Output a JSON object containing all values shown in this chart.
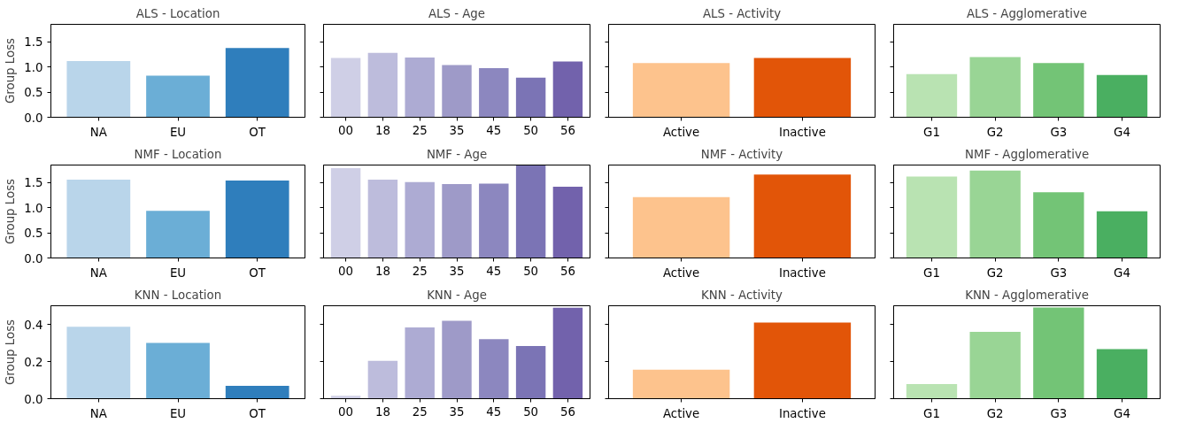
{
  "chart_data": [
    {
      "type": "bar",
      "title": "ALS - Location",
      "ylabel": "Group Loss",
      "categories": [
        "NA",
        "EU",
        "OT"
      ],
      "values": [
        1.12,
        0.83,
        1.38
      ],
      "colors": [
        "#b9d5ea",
        "#6baed6",
        "#2f7ebc"
      ],
      "ylim": [
        0,
        1.85
      ],
      "yticks": [
        {
          "value": 0,
          "label": "0.0"
        },
        0.5,
        {
          "value": 1,
          "label": "1.0"
        },
        1.5
      ]
    },
    {
      "type": "bar",
      "title": "ALS - Age",
      "categories": [
        "00",
        "18",
        "25",
        "35",
        "45",
        "50",
        "56"
      ],
      "values": [
        1.18,
        1.28,
        1.19,
        1.04,
        0.98,
        0.79,
        1.11
      ],
      "colors": [
        "#cfcfe6",
        "#bdbcdc",
        "#adabd3",
        "#9e9ac8",
        "#8c87bf",
        "#7b74b5",
        "#7262ac"
      ],
      "ylim": [
        0,
        1.85
      ],
      "yticks": [
        {
          "value": 0,
          "label": null
        },
        {
          "value": 0.5,
          "label": null
        },
        {
          "value": 1,
          "label": null
        },
        {
          "value": 1.5,
          "label": null
        }
      ],
      "tick_labels": "x"
    },
    {
      "type": "bar",
      "title": "ALS - Activity",
      "categories": [
        "Active",
        "Inactive"
      ],
      "values": [
        1.08,
        1.18
      ],
      "colors": [
        "#fdc38d",
        "#e25508"
      ],
      "ylim": [
        0,
        1.85
      ],
      "yticks": [
        {
          "value": 0,
          "label": null
        },
        {
          "value": 0.5,
          "label": null
        },
        {
          "value": 1,
          "label": null
        },
        {
          "value": 1.5,
          "label": null
        }
      ],
      "tick_labels": "x"
    },
    {
      "type": "bar",
      "title": "ALS - Agglomerative",
      "categories": [
        "G1",
        "G2",
        "G3",
        "G4"
      ],
      "values": [
        0.86,
        1.2,
        1.08,
        0.84
      ],
      "colors": [
        "#b9e3b2",
        "#99d595",
        "#73c476",
        "#4aaf61"
      ],
      "ylim": [
        0,
        1.85
      ],
      "yticks": [
        {
          "value": 0,
          "label": null
        },
        {
          "value": 0.5,
          "label": null
        },
        {
          "value": 1,
          "label": null
        },
        {
          "value": 1.5,
          "label": null
        }
      ],
      "tick_labels": "x"
    },
    {
      "type": "bar",
      "title": "NMF - Location",
      "ylabel": "Group Loss",
      "categories": [
        "NA",
        "EU",
        "OT"
      ],
      "values": [
        1.56,
        0.94,
        1.54
      ],
      "colors": [
        "#b9d5ea",
        "#6baed6",
        "#2f7ebc"
      ],
      "ylim": [
        0,
        1.85
      ],
      "yticks": [
        {
          "value": 0,
          "label": "0.0"
        },
        0.5,
        {
          "value": 1,
          "label": "1.0"
        },
        1.5
      ]
    },
    {
      "type": "bar",
      "title": "NMF - Age",
      "categories": [
        "00",
        "18",
        "25",
        "35",
        "45",
        "50",
        "56"
      ],
      "values": [
        1.79,
        1.56,
        1.51,
        1.47,
        1.48,
        1.84,
        1.42
      ],
      "colors": [
        "#cfcfe6",
        "#bdbcdc",
        "#adabd3",
        "#9e9ac8",
        "#8c87bf",
        "#7b74b5",
        "#7262ac"
      ],
      "ylim": [
        0,
        1.85
      ],
      "yticks": [
        {
          "value": 0,
          "label": null
        },
        {
          "value": 0.5,
          "label": null
        },
        {
          "value": 1,
          "label": null
        },
        {
          "value": 1.5,
          "label": null
        }
      ],
      "tick_labels": "x"
    },
    {
      "type": "bar",
      "title": "NMF - Activity",
      "categories": [
        "Active",
        "Inactive"
      ],
      "values": [
        1.21,
        1.66
      ],
      "colors": [
        "#fdc38d",
        "#e25508"
      ],
      "ylim": [
        0,
        1.85
      ],
      "yticks": [
        {
          "value": 0,
          "label": null
        },
        {
          "value": 0.5,
          "label": null
        },
        {
          "value": 1,
          "label": null
        },
        {
          "value": 1.5,
          "label": null
        }
      ],
      "tick_labels": "x"
    },
    {
      "type": "bar",
      "title": "NMF - Agglomerative",
      "categories": [
        "G1",
        "G2",
        "G3",
        "G4"
      ],
      "values": [
        1.62,
        1.74,
        1.31,
        0.93
      ],
      "colors": [
        "#b9e3b2",
        "#99d595",
        "#73c476",
        "#4aaf61"
      ],
      "ylim": [
        0,
        1.85
      ],
      "yticks": [
        {
          "value": 0,
          "label": null
        },
        {
          "value": 0.5,
          "label": null
        },
        {
          "value": 1,
          "label": null
        },
        {
          "value": 1.5,
          "label": null
        }
      ],
      "tick_labels": "x"
    },
    {
      "type": "bar",
      "title": "KNN - Location",
      "ylabel": "Group Loss",
      "categories": [
        "NA",
        "EU",
        "OT"
      ],
      "values": [
        0.387,
        0.3,
        0.069
      ],
      "colors": [
        "#b9d5ea",
        "#6baed6",
        "#2f7ebc"
      ],
      "ylim": [
        0,
        0.5
      ],
      "yticks": [
        {
          "value": 0,
          "label": "0.0"
        },
        0.2,
        0.4
      ]
    },
    {
      "type": "bar",
      "title": "KNN - Age",
      "categories": [
        "00",
        "18",
        "25",
        "35",
        "45",
        "50",
        "56"
      ],
      "values": [
        0.015,
        0.203,
        0.383,
        0.419,
        0.32,
        0.283,
        0.489
      ],
      "colors": [
        "#cfcfe6",
        "#bdbcdc",
        "#adabd3",
        "#9e9ac8",
        "#8c87bf",
        "#7b74b5",
        "#7262ac"
      ],
      "ylim": [
        0,
        0.5
      ],
      "yticks": [
        {
          "value": 0,
          "label": null
        },
        {
          "value": 0.2,
          "label": null
        },
        {
          "value": 0.4,
          "label": null
        }
      ],
      "tick_labels": "x"
    },
    {
      "type": "bar",
      "title": "KNN - Activity",
      "categories": [
        "Active",
        "Inactive"
      ],
      "values": [
        0.156,
        0.41
      ],
      "colors": [
        "#fdc38d",
        "#e25508"
      ],
      "ylim": [
        0,
        0.5
      ],
      "yticks": [
        {
          "value": 0,
          "label": null
        },
        {
          "value": 0.2,
          "label": null
        },
        {
          "value": 0.4,
          "label": null
        }
      ],
      "tick_labels": "x"
    },
    {
      "type": "bar",
      "title": "KNN - Agglomerative",
      "categories": [
        "G1",
        "G2",
        "G3",
        "G4"
      ],
      "values": [
        0.079,
        0.36,
        0.49,
        0.267
      ],
      "colors": [
        "#b9e3b2",
        "#99d595",
        "#73c476",
        "#4aaf61"
      ],
      "ylim": [
        0,
        0.5
      ],
      "yticks": [
        {
          "value": 0,
          "label": null
        },
        {
          "value": 0.2,
          "label": null
        },
        {
          "value": 0.4,
          "label": null
        }
      ],
      "tick_labels": "x"
    }
  ]
}
